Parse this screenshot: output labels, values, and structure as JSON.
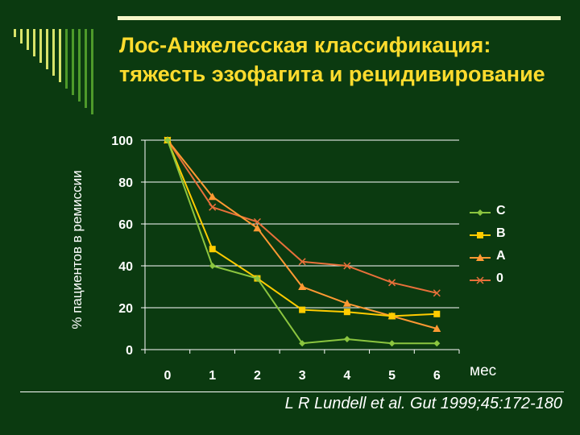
{
  "slide": {
    "title": "Лос-Анжелесская классификация: тяжесть эзофагита и рецидивирование",
    "citation": "L R Lundell et al. Gut 1999;45:172-180"
  },
  "colors": {
    "background": "#0b3a10",
    "title": "#ffdc2e",
    "accent_bar": "#f6f6c8",
    "comb": "#d8e36a"
  },
  "chart_data": {
    "type": "line",
    "title": "",
    "xlabel": "мес",
    "ylabel": "% пациентов в ремиссии",
    "x": [
      0,
      1,
      2,
      3,
      4,
      5,
      6
    ],
    "ylim": [
      0,
      100
    ],
    "yticks": [
      0,
      20,
      40,
      60,
      80,
      100
    ],
    "grid": "horizontal",
    "legend_position": "right",
    "series": [
      {
        "name": "C",
        "color": "#8bc53f",
        "marker": "diamond",
        "values": [
          100,
          40,
          34,
          3,
          5,
          3,
          3
        ]
      },
      {
        "name": "B",
        "color": "#ffcc00",
        "marker": "square",
        "values": [
          100,
          48,
          34,
          19,
          18,
          16,
          17
        ]
      },
      {
        "name": "A",
        "color": "#ff9933",
        "marker": "triangle",
        "values": [
          100,
          73,
          58,
          30,
          22,
          16,
          10
        ]
      },
      {
        "name": "0",
        "color": "#e8703a",
        "marker": "x",
        "values": [
          100,
          68,
          61,
          42,
          40,
          32,
          27
        ]
      }
    ]
  }
}
